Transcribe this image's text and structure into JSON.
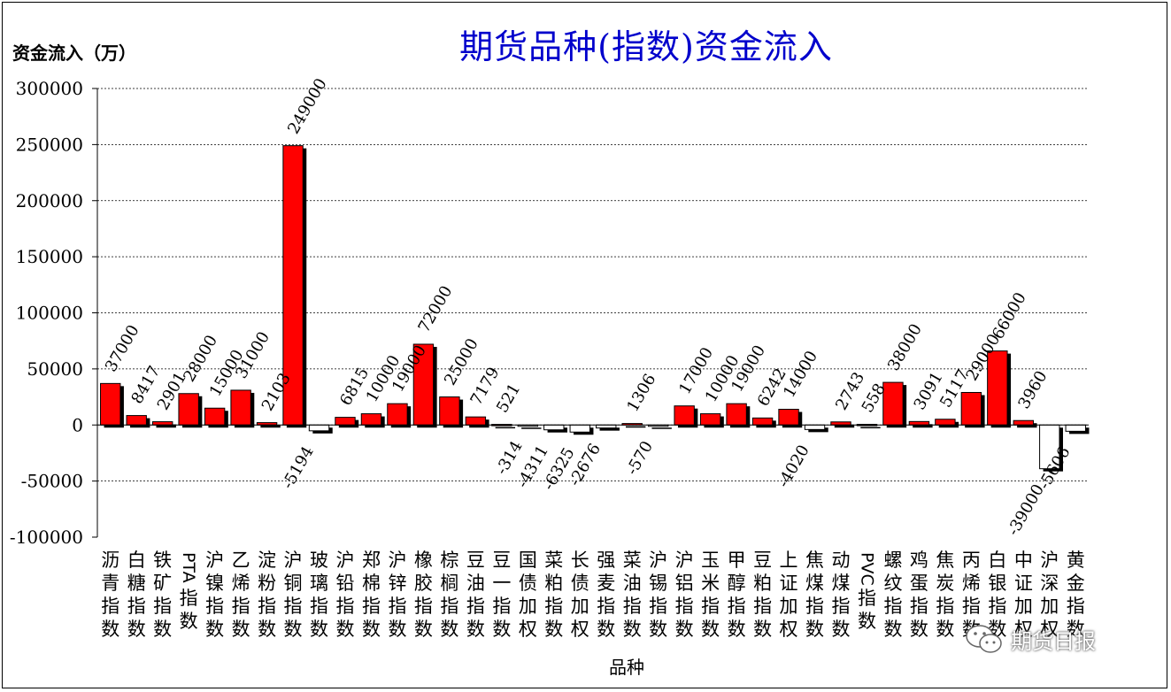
{
  "chart_data": {
    "type": "bar",
    "title": "期货品种(指数)资金流入",
    "ylabel": "资金流入（万）",
    "xlabel": "品种",
    "ylim": [
      -100000,
      300000
    ],
    "yticks": [
      300000,
      250000,
      200000,
      150000,
      100000,
      50000,
      0,
      -50000,
      -100000
    ],
    "grid": true,
    "positive_color": "#ff0000",
    "negative_color": "#ffffff",
    "categories": [
      "沥青指数",
      "白糖指数",
      "铁矿指数",
      "PTA指数",
      "沪镍指数",
      "乙烯指数",
      "淀粉指数",
      "沪铜指数",
      "玻璃指数",
      "沪铅指数",
      "郑棉指数",
      "沪锌指数",
      "橡胶指数",
      "棕榈指数",
      "豆油指数",
      "豆一指数",
      "国债加权",
      "菜粕指数",
      "长债加权",
      "强麦指数",
      "菜油指数",
      "沪锡指数",
      "沪铝指数",
      "玉米指数",
      "甲醇指数",
      "豆粕指数",
      "上证加权",
      "焦煤指数",
      "动煤指数",
      "PVC指数",
      "螺纹指数",
      "鸡蛋指数",
      "焦炭指数",
      "丙烯指数",
      "白银指数",
      "中证加权",
      "沪深加权",
      "黄金指数"
    ],
    "values": [
      37000,
      8417,
      2901,
      28000,
      15000,
      31000,
      2103,
      249000,
      -5194,
      6815,
      10000,
      19000,
      72000,
      25000,
      7179,
      521,
      -314,
      -4311,
      -6325,
      -2676,
      1306,
      -570,
      17000,
      10000,
      19000,
      6242,
      14000,
      -4020,
      2743,
      558,
      38000,
      3091,
      5117,
      29000,
      66000,
      3960,
      -39000,
      -5606
    ],
    "data_labels": [
      "37000",
      "8417",
      "2901",
      "28000",
      "15000",
      "31000",
      "2103",
      "249000",
      "-5194",
      "6815",
      "10000",
      "19000",
      "72000",
      "25000",
      "7179",
      "521",
      "-314",
      "-4311",
      "-6325",
      "-2676",
      "1306",
      "-570",
      "17000",
      "10000",
      "19000",
      "6242",
      "14000",
      "-4020",
      "2743",
      "558",
      "38000",
      "3091",
      "5117",
      "29000",
      "66000",
      "3960",
      "-39000",
      "-5606"
    ]
  },
  "watermark": {
    "text": "期货日报",
    "icon": "wechat-icon"
  }
}
